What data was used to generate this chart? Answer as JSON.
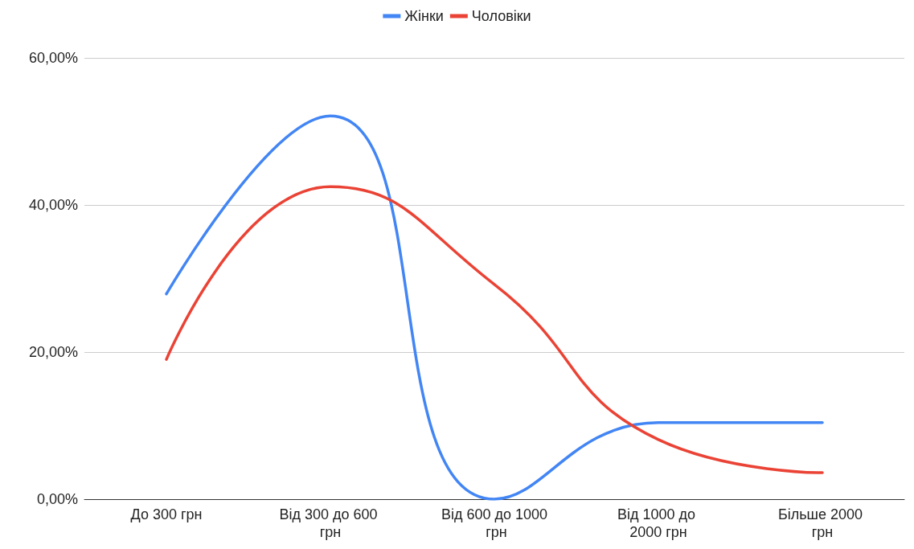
{
  "chart_data": {
    "type": "line",
    "categories": [
      "До 300 грн",
      "Від 300 до 600 грн",
      "Від 600 до 1000 грн",
      "Від 1000 до 2000 грн",
      "Більше 2000 грн"
    ],
    "series": [
      {
        "name": "Жінки",
        "color": "#4285f4",
        "values": [
          27.9,
          52.1,
          0,
          10.4,
          10.4
        ]
      },
      {
        "name": "Чоловіки",
        "color": "#ea4335",
        "values": [
          19,
          42.5,
          29.2,
          8.1,
          3.6
        ]
      }
    ],
    "ylim": [
      0,
      60
    ],
    "yticks": [
      {
        "value": 0,
        "label": "0,00%"
      },
      {
        "value": 20,
        "label": "20,00%"
      },
      {
        "value": 40,
        "label": "40,00%"
      },
      {
        "value": 60,
        "label": "60,00%"
      }
    ],
    "grid": "y",
    "legend": "top",
    "marker": "none",
    "line_style": "solid"
  }
}
